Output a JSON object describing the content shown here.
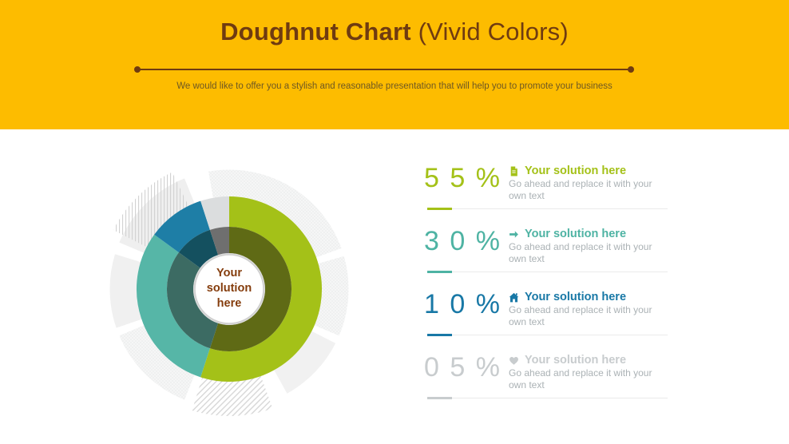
{
  "header": {
    "title_bold": "Doughnut Chart",
    "title_light": " (Vivid Colors)",
    "subtitle": "We would like to offer you a stylish and reasonable presentation that will help you to promote your business",
    "background_color": "#FDBC00",
    "text_color": "#6F3B11"
  },
  "chart_data": {
    "type": "pie",
    "subtype": "doughnut-double-ring",
    "center_label": "Your solution here",
    "center_label_color": "#843C0C",
    "segments": [
      {
        "label": "Your solution here",
        "value": 55,
        "color": "#A4C118",
        "inner_color": "#5F6A15"
      },
      {
        "label": "Your solution here",
        "value": 30,
        "color": "#56B6A7",
        "inner_color": "#3C6B63"
      },
      {
        "label": "Your solution here",
        "value": 10,
        "color": "#1E7EA6",
        "inner_color": "#14505F"
      },
      {
        "label": "Your solution here",
        "value": 5,
        "color": "#DBDDDE",
        "inner_color": "#6F6F6F"
      }
    ],
    "start_angle_deg": 0,
    "direction": "clockwise",
    "legend_position": "right-list"
  },
  "stats": [
    {
      "value": "5 5 %",
      "icon": "document-icon",
      "title": "Your solution here",
      "description": "Go ahead and replace it with your own text",
      "color": "#A4C118"
    },
    {
      "value": "3 0 %",
      "icon": "arrow-right-icon",
      "title": "Your solution here",
      "description": "Go ahead and replace it with your own text",
      "color": "#4EB3A3"
    },
    {
      "value": "1 0 %",
      "icon": "home-icon",
      "title": "Your solution here",
      "description": "Go ahead and replace it with your own text",
      "color": "#1878A6"
    },
    {
      "value": "0 5 %",
      "icon": "heart-icon",
      "title": "Your solution here",
      "description": "Go ahead and replace it with your own text",
      "color": "#C8CCCE"
    }
  ],
  "styles": {
    "description_color": "#ABB2B5",
    "divider_color": "#EAEAEA"
  }
}
